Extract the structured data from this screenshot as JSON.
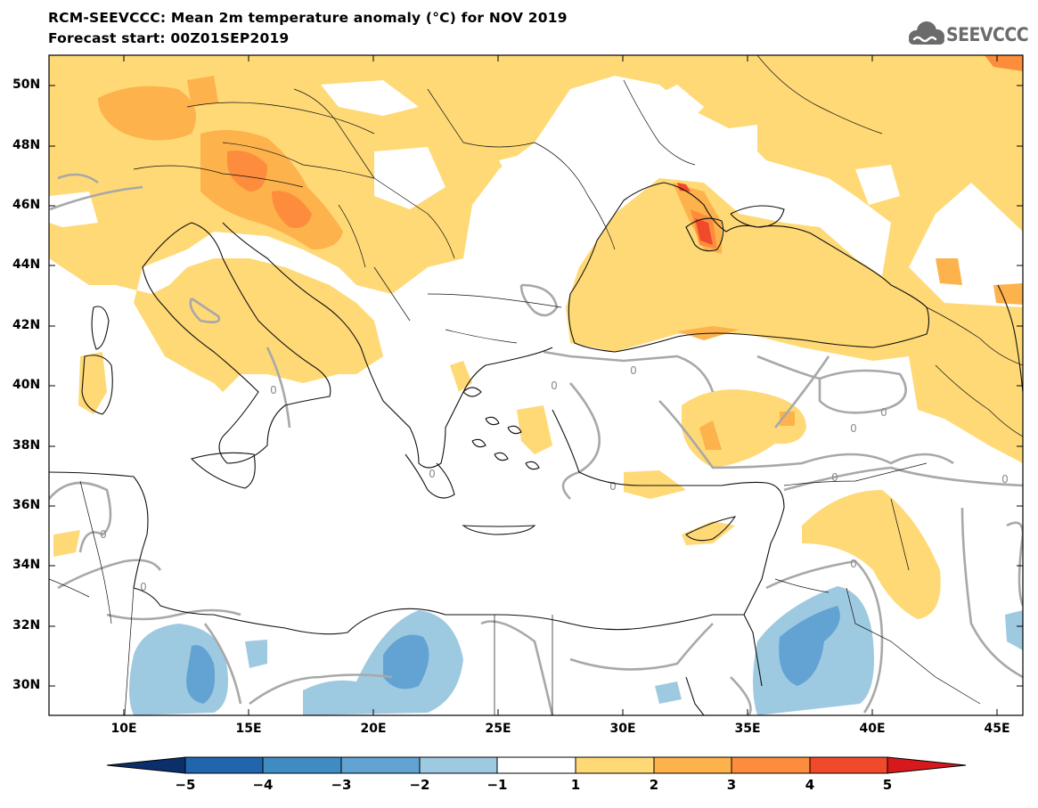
{
  "header": {
    "title_line1": "RCM-SEEVCCC: Mean 2m temperature anomaly (°C) for NOV 2019",
    "title_line2": "Forecast start: 00Z01SEP2019",
    "logo_text": "SEEVCCC"
  },
  "map": {
    "variable": "Mean 2m temperature anomaly",
    "units": "°C",
    "lon_range": [
      7,
      46
    ],
    "lat_range": [
      29,
      51
    ],
    "lat_labels": [
      "50N",
      "48N",
      "46N",
      "44N",
      "42N",
      "40N",
      "38N",
      "36N",
      "34N",
      "32N",
      "30N"
    ],
    "lon_labels": [
      "10E",
      "15E",
      "20E",
      "25E",
      "30E",
      "35E",
      "40E",
      "45E"
    ],
    "contour_label": "0",
    "colors": {
      "water": "#ffffff",
      "coast": "#111111",
      "zero_contour": "#a8a8a8"
    }
  },
  "colorbar": {
    "ticks": [
      "−5",
      "−4",
      "−3",
      "−2",
      "−1",
      "1",
      "2",
      "3",
      "4",
      "5"
    ],
    "bins": [
      {
        "range": "< -5",
        "color": "#0b2f6b"
      },
      {
        "range": "-5..-4",
        "color": "#2166ac"
      },
      {
        "range": "-4..-3",
        "color": "#3f8bc4"
      },
      {
        "range": "-3..-2",
        "color": "#62a3d3"
      },
      {
        "range": "-2..-1",
        "color": "#9ecae1"
      },
      {
        "range": "-1..1",
        "color": "#ffffff"
      },
      {
        "range": "1..2",
        "color": "#fed976"
      },
      {
        "range": "2..3",
        "color": "#fdb24c"
      },
      {
        "range": "3..4",
        "color": "#fd8d3c"
      },
      {
        "range": "4..5",
        "color": "#f14a2b"
      },
      {
        "range": "> 5",
        "color": "#d7191c"
      }
    ]
  }
}
